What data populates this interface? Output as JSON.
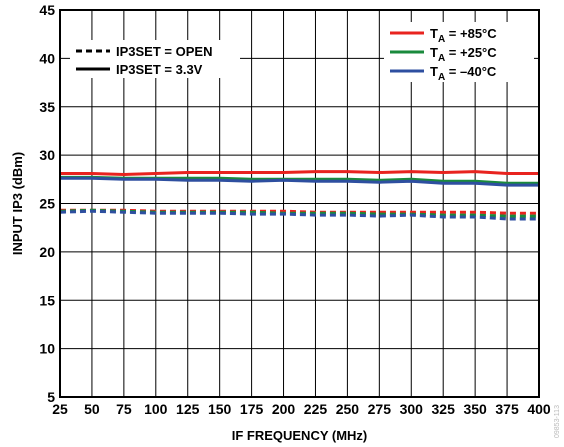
{
  "chart_data": {
    "type": "line",
    "title": "",
    "xlabel": "IF FREQUENCY (MHz)",
    "ylabel": "INPUT IP3 (dBm)",
    "xlim": [
      25,
      400
    ],
    "ylim": [
      5,
      45
    ],
    "xticks": [
      25,
      50,
      75,
      100,
      125,
      150,
      175,
      200,
      225,
      250,
      275,
      300,
      325,
      350,
      375,
      400
    ],
    "yticks": [
      5,
      10,
      15,
      20,
      25,
      30,
      35,
      40,
      45
    ],
    "grid": true,
    "x": [
      25,
      50,
      75,
      100,
      125,
      150,
      175,
      200,
      225,
      250,
      275,
      300,
      325,
      350,
      375,
      400
    ],
    "style_legend": {
      "placement": "top-left",
      "entries": [
        {
          "label": "IP3SET = OPEN",
          "dash": "dashed"
        },
        {
          "label": "IP3SET = 3.3V",
          "dash": "solid"
        }
      ]
    },
    "temp_legend": {
      "placement": "top-right",
      "entries": [
        {
          "main": "T",
          "sub": "A",
          "rest": " = +85°C",
          "color": "#e8231f"
        },
        {
          "main": "T",
          "sub": "A",
          "rest": " = +25°C",
          "color": "#1a8a3c"
        },
        {
          "main": "T",
          "sub": "A",
          "rest": " = –40°C",
          "color": "#2e4fa0"
        }
      ]
    },
    "series": [
      {
        "color": "#e8231f",
        "dash": "solid",
        "values": [
          28.1,
          28.1,
          28.0,
          28.1,
          28.2,
          28.2,
          28.2,
          28.2,
          28.3,
          28.3,
          28.2,
          28.3,
          28.2,
          28.3,
          28.1,
          28.1
        ]
      },
      {
        "color": "#1a8a3c",
        "dash": "solid",
        "values": [
          27.7,
          27.7,
          27.6,
          27.6,
          27.6,
          27.6,
          27.5,
          27.5,
          27.5,
          27.5,
          27.4,
          27.5,
          27.3,
          27.3,
          27.1,
          27.1
        ]
      },
      {
        "color": "#2e4fa0",
        "dash": "solid",
        "values": [
          27.6,
          27.6,
          27.5,
          27.5,
          27.4,
          27.4,
          27.3,
          27.4,
          27.3,
          27.3,
          27.2,
          27.3,
          27.1,
          27.1,
          26.9,
          26.9
        ]
      },
      {
        "color": "#e8231f",
        "dash": "dashed",
        "values": [
          24.3,
          24.3,
          24.3,
          24.2,
          24.2,
          24.2,
          24.2,
          24.2,
          24.1,
          24.1,
          24.1,
          24.1,
          24.1,
          24.1,
          24.0,
          24.0
        ]
      },
      {
        "color": "#1a8a3c",
        "dash": "dashed",
        "values": [
          24.2,
          24.3,
          24.2,
          24.1,
          24.1,
          24.1,
          24.1,
          24.0,
          24.0,
          24.0,
          23.9,
          23.9,
          23.8,
          23.8,
          23.7,
          23.7
        ]
      },
      {
        "color": "#2e4fa0",
        "dash": "dashed",
        "values": [
          24.1,
          24.2,
          24.1,
          24.0,
          24.0,
          24.0,
          23.9,
          23.9,
          23.8,
          23.8,
          23.7,
          23.8,
          23.6,
          23.6,
          23.4,
          23.4
        ]
      }
    ],
    "figure_id": "09853-113"
  }
}
